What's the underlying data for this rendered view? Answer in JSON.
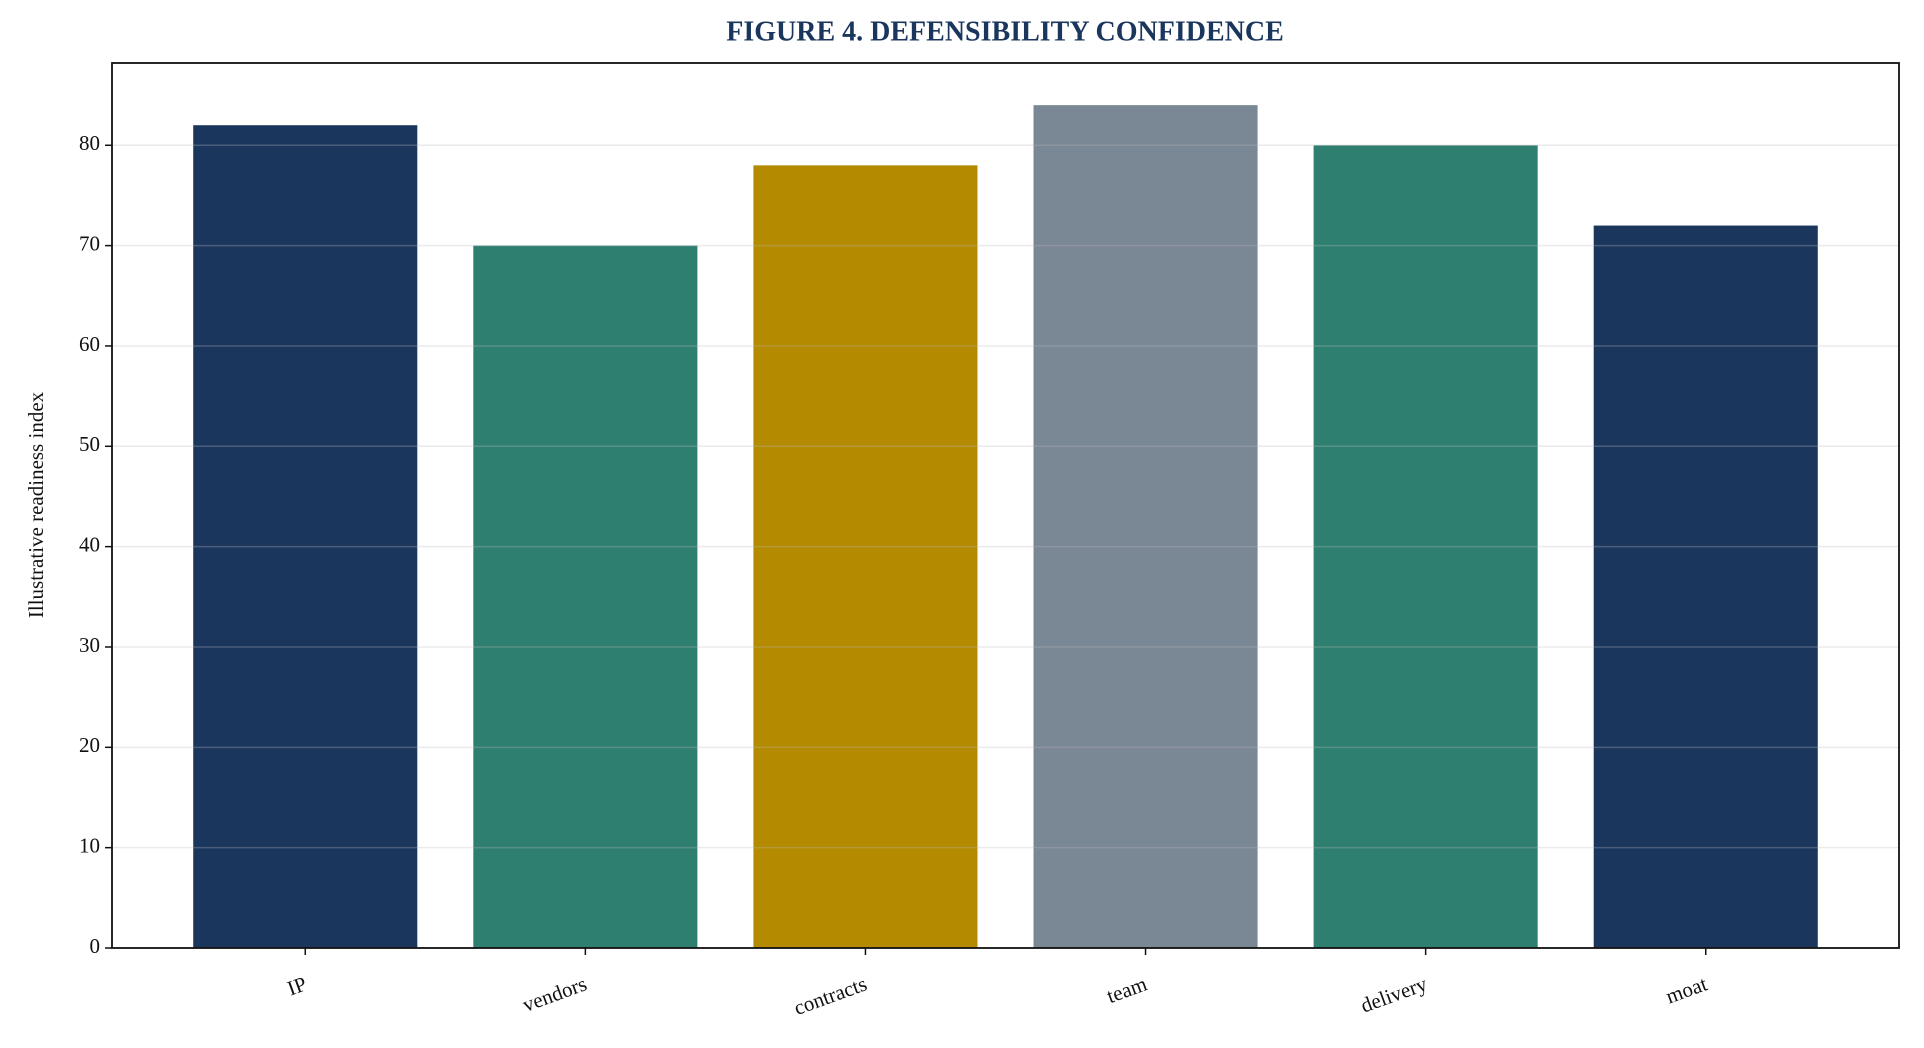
{
  "chart_data": {
    "type": "bar",
    "title": "FIGURE 4. DEFENSIBILITY CONFIDENCE",
    "y_label": "Illustrative readiness index",
    "categories": [
      "IP",
      "vendors",
      "contracts",
      "team",
      "delivery",
      "moat"
    ],
    "values": [
      82,
      70,
      78,
      84,
      80,
      72
    ],
    "colors": [
      "#1a365d",
      "#2e7f6f",
      "#b38a00",
      "#7a8794",
      "#2e7f6f",
      "#1a365d"
    ],
    "ylim": [
      0,
      88.2
    ],
    "yticks": [
      0,
      10,
      20,
      30,
      40,
      50,
      60,
      70,
      80
    ],
    "grid": true
  }
}
